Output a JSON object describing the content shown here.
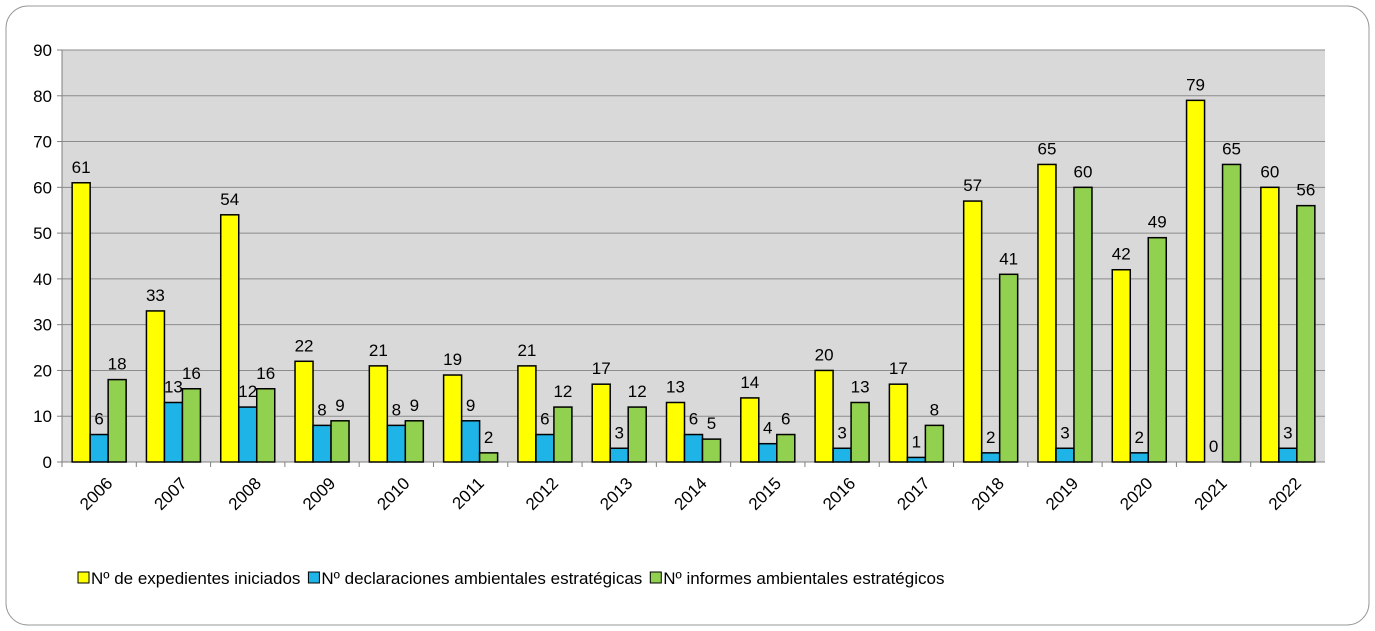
{
  "chart_data": {
    "type": "bar",
    "categories": [
      "2006",
      "2007",
      "2008",
      "2009",
      "2010",
      "2011",
      "2012",
      "2013",
      "2014",
      "2015",
      "2016",
      "2017",
      "2018",
      "2019",
      "2020",
      "2021",
      "2022"
    ],
    "series": [
      {
        "name": "Nº de expedientes iniciados",
        "color": "#ffff00",
        "values": [
          61,
          33,
          54,
          22,
          21,
          19,
          21,
          17,
          13,
          14,
          20,
          17,
          57,
          65,
          42,
          79,
          60
        ]
      },
      {
        "name": "Nº declaraciones ambientales estratégicas",
        "color": "#1eb4e8",
        "values": [
          6,
          13,
          12,
          8,
          8,
          9,
          6,
          3,
          6,
          4,
          3,
          1,
          2,
          3,
          2,
          0,
          3
        ]
      },
      {
        "name": "Nº informes ambientales estratégicos",
        "color": "#92d050",
        "values": [
          18,
          16,
          16,
          9,
          9,
          2,
          12,
          12,
          5,
          6,
          13,
          8,
          41,
          60,
          49,
          65,
          56
        ]
      }
    ],
    "ylim": [
      0,
      90
    ],
    "yticks": [
      0,
      10,
      20,
      30,
      40,
      50,
      60,
      70,
      80,
      90
    ],
    "grid": true,
    "legend": "bottom"
  }
}
